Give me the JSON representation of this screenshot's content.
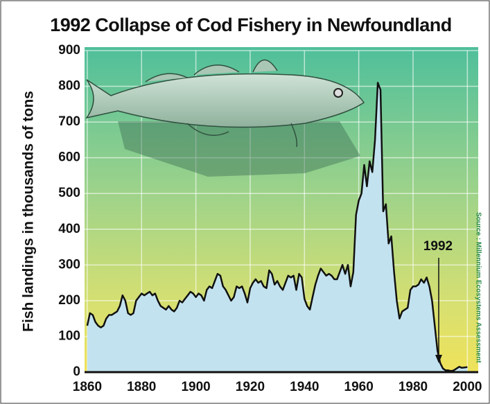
{
  "chart_data": {
    "type": "area",
    "title": "1992 Collapse of Cod Fishery in Newfoundland",
    "y_label": "Fish landings in thousands of tons",
    "annotation": "1992",
    "source": "Source : Millennium Ecosystems Assessment",
    "fill_color": "#c3e2f0",
    "line_color": "#111111",
    "x": [
      1860,
      1861,
      1862,
      1863,
      1864,
      1865,
      1866,
      1867,
      1868,
      1869,
      1870,
      1871,
      1872,
      1873,
      1874,
      1875,
      1876,
      1877,
      1878,
      1879,
      1880,
      1881,
      1882,
      1883,
      1884,
      1885,
      1886,
      1887,
      1888,
      1889,
      1890,
      1891,
      1892,
      1893,
      1894,
      1895,
      1896,
      1897,
      1898,
      1899,
      1900,
      1901,
      1902,
      1903,
      1904,
      1905,
      1906,
      1907,
      1908,
      1909,
      1910,
      1911,
      1912,
      1913,
      1914,
      1915,
      1916,
      1917,
      1918,
      1919,
      1920,
      1921,
      1922,
      1923,
      1924,
      1925,
      1926,
      1927,
      1928,
      1929,
      1930,
      1931,
      1932,
      1933,
      1934,
      1935,
      1936,
      1937,
      1938,
      1939,
      1940,
      1941,
      1942,
      1943,
      1944,
      1945,
      1946,
      1947,
      1948,
      1949,
      1950,
      1951,
      1952,
      1953,
      1954,
      1955,
      1956,
      1957,
      1958,
      1959,
      1960,
      1961,
      1962,
      1963,
      1964,
      1965,
      1966,
      1967,
      1968,
      1969,
      1970,
      1971,
      1972,
      1973,
      1974,
      1975,
      1976,
      1977,
      1978,
      1979,
      1980,
      1981,
      1982,
      1983,
      1984,
      1985,
      1986,
      1987,
      1988,
      1989,
      1990,
      1991,
      1992,
      1993,
      1994,
      1995,
      1996,
      1997,
      1998,
      1999,
      2000
    ],
    "values": [
      130,
      165,
      160,
      140,
      130,
      125,
      130,
      150,
      160,
      160,
      165,
      170,
      185,
      215,
      200,
      165,
      160,
      165,
      200,
      210,
      220,
      215,
      220,
      225,
      215,
      220,
      200,
      185,
      180,
      175,
      185,
      175,
      170,
      180,
      200,
      195,
      205,
      215,
      225,
      220,
      210,
      220,
      215,
      200,
      230,
      240,
      235,
      255,
      275,
      270,
      240,
      230,
      215,
      200,
      210,
      240,
      235,
      240,
      220,
      195,
      235,
      250,
      260,
      250,
      255,
      240,
      235,
      285,
      275,
      245,
      255,
      240,
      230,
      250,
      270,
      265,
      270,
      230,
      275,
      265,
      205,
      185,
      175,
      210,
      245,
      270,
      290,
      280,
      270,
      275,
      270,
      260,
      260,
      280,
      300,
      275,
      300,
      240,
      280,
      440,
      480,
      500,
      580,
      520,
      590,
      560,
      650,
      810,
      790,
      450,
      470,
      360,
      380,
      280,
      200,
      150,
      170,
      175,
      180,
      230,
      240,
      240,
      245,
      260,
      250,
      265,
      240,
      200,
      130,
      60,
      25,
      10,
      5,
      5,
      3,
      5,
      10,
      15,
      12,
      13,
      14
    ],
    "xlim": [
      1859,
      2004
    ],
    "ylim": [
      0,
      900
    ],
    "xticks": [
      1860,
      1880,
      1900,
      1920,
      1940,
      1960,
      1980,
      2000
    ],
    "yticks": [
      0,
      100,
      200,
      300,
      400,
      500,
      600,
      700,
      800,
      900
    ],
    "grid": true
  }
}
